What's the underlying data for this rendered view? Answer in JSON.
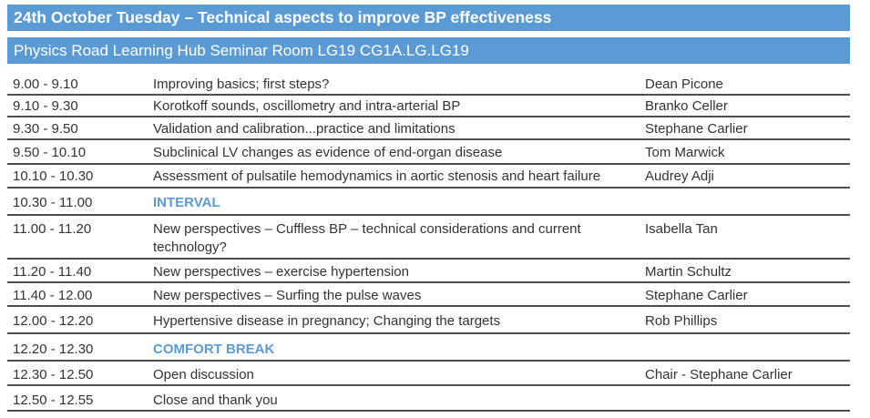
{
  "header": {
    "title_bar": "24th October Tuesday – Technical aspects to improve BP effectiveness",
    "location_bar": "Physics Road Learning Hub Seminar Room LG19 CG1A.LG.LG19"
  },
  "colors": {
    "accent_blue": "#5B9BD5",
    "body_text": "#333333",
    "divider_line": "#4F4F4F"
  },
  "schedule": {
    "rows": [
      {
        "time": "9.00 - 9.10",
        "session": "Improving basics; first steps?",
        "speaker": "Dean Picone",
        "is_break": false
      },
      {
        "time": "9.10 - 9.30",
        "session": "Korotkoff sounds, oscillometry and intra-arterial BP",
        "speaker": "Branko Celler",
        "is_break": false
      },
      {
        "time": "9.30 - 9.50",
        "session": "Validation and calibration...practice and limitations",
        "speaker": "Stephane Carlier",
        "is_break": false
      },
      {
        "time": "9.50 - 10.10",
        "session": "Subclinical LV changes as evidence of end-organ disease",
        "speaker": "Tom Marwick",
        "is_break": false
      },
      {
        "time": "10.10 - 10.30",
        "session": "Assessment of pulsatile hemodynamics in aortic stenosis and heart failure",
        "speaker": "Audrey Adji",
        "is_break": false
      },
      {
        "time": "10.30 - 11.00",
        "session": "INTERVAL",
        "speaker": "",
        "is_break": true
      },
      {
        "time": "11.00 - 11.20",
        "session": "New perspectives – Cuffless BP – technical considerations and current technology?",
        "speaker": "Isabella Tan",
        "is_break": false
      },
      {
        "time": "11.20 - 11.40",
        "session": "New perspectives – exercise hypertension",
        "speaker": "Martin Schultz",
        "is_break": false
      },
      {
        "time": "11.40 - 12.00",
        "session": "New perspectives – Surfing the pulse waves",
        "speaker": "Stephane Carlier",
        "is_break": false
      },
      {
        "time": "12.00 - 12.20",
        "session": "Hypertensive disease in pregnancy; Changing the targets",
        "speaker": "Rob Phillips",
        "is_break": false
      },
      {
        "time": "12.20 - 12.30",
        "session": "COMFORT BREAK",
        "speaker": "",
        "is_break": true
      },
      {
        "time": "12.30 - 12.50",
        "session": "Open discussion",
        "speaker": "Chair - Stephane Carlier",
        "is_break": false
      },
      {
        "time": "12.50 - 12.55",
        "session": "Close and thank you",
        "speaker": "",
        "is_break": false
      }
    ]
  }
}
